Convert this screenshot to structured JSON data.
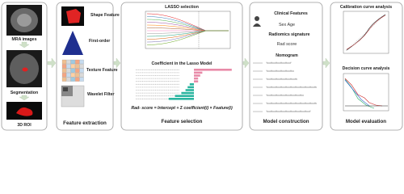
{
  "panels": [
    {
      "title": "",
      "items": [
        "MRA images",
        "Segmentation",
        "3D ROI"
      ]
    },
    {
      "title": "Feature extraction",
      "items": [
        "Shape Feature",
        "First-order",
        "Texture Feature",
        "Wavelet Filter"
      ]
    },
    {
      "title": "Feature selection",
      "items": [
        "LASSO selection",
        "Coefficient in the Lasso Model",
        "Rad- score = Intercept + Σ coefficient(i) × Feature(i)"
      ]
    },
    {
      "title": "Model construction",
      "items": [
        "Clinical Features",
        "Sex Age",
        "Radiomics signature",
        "Rad score",
        "Nomogram"
      ]
    },
    {
      "title": "Model evaluation",
      "items": [
        "Calibration curve analysis",
        "Decision curve analysis"
      ]
    }
  ]
}
